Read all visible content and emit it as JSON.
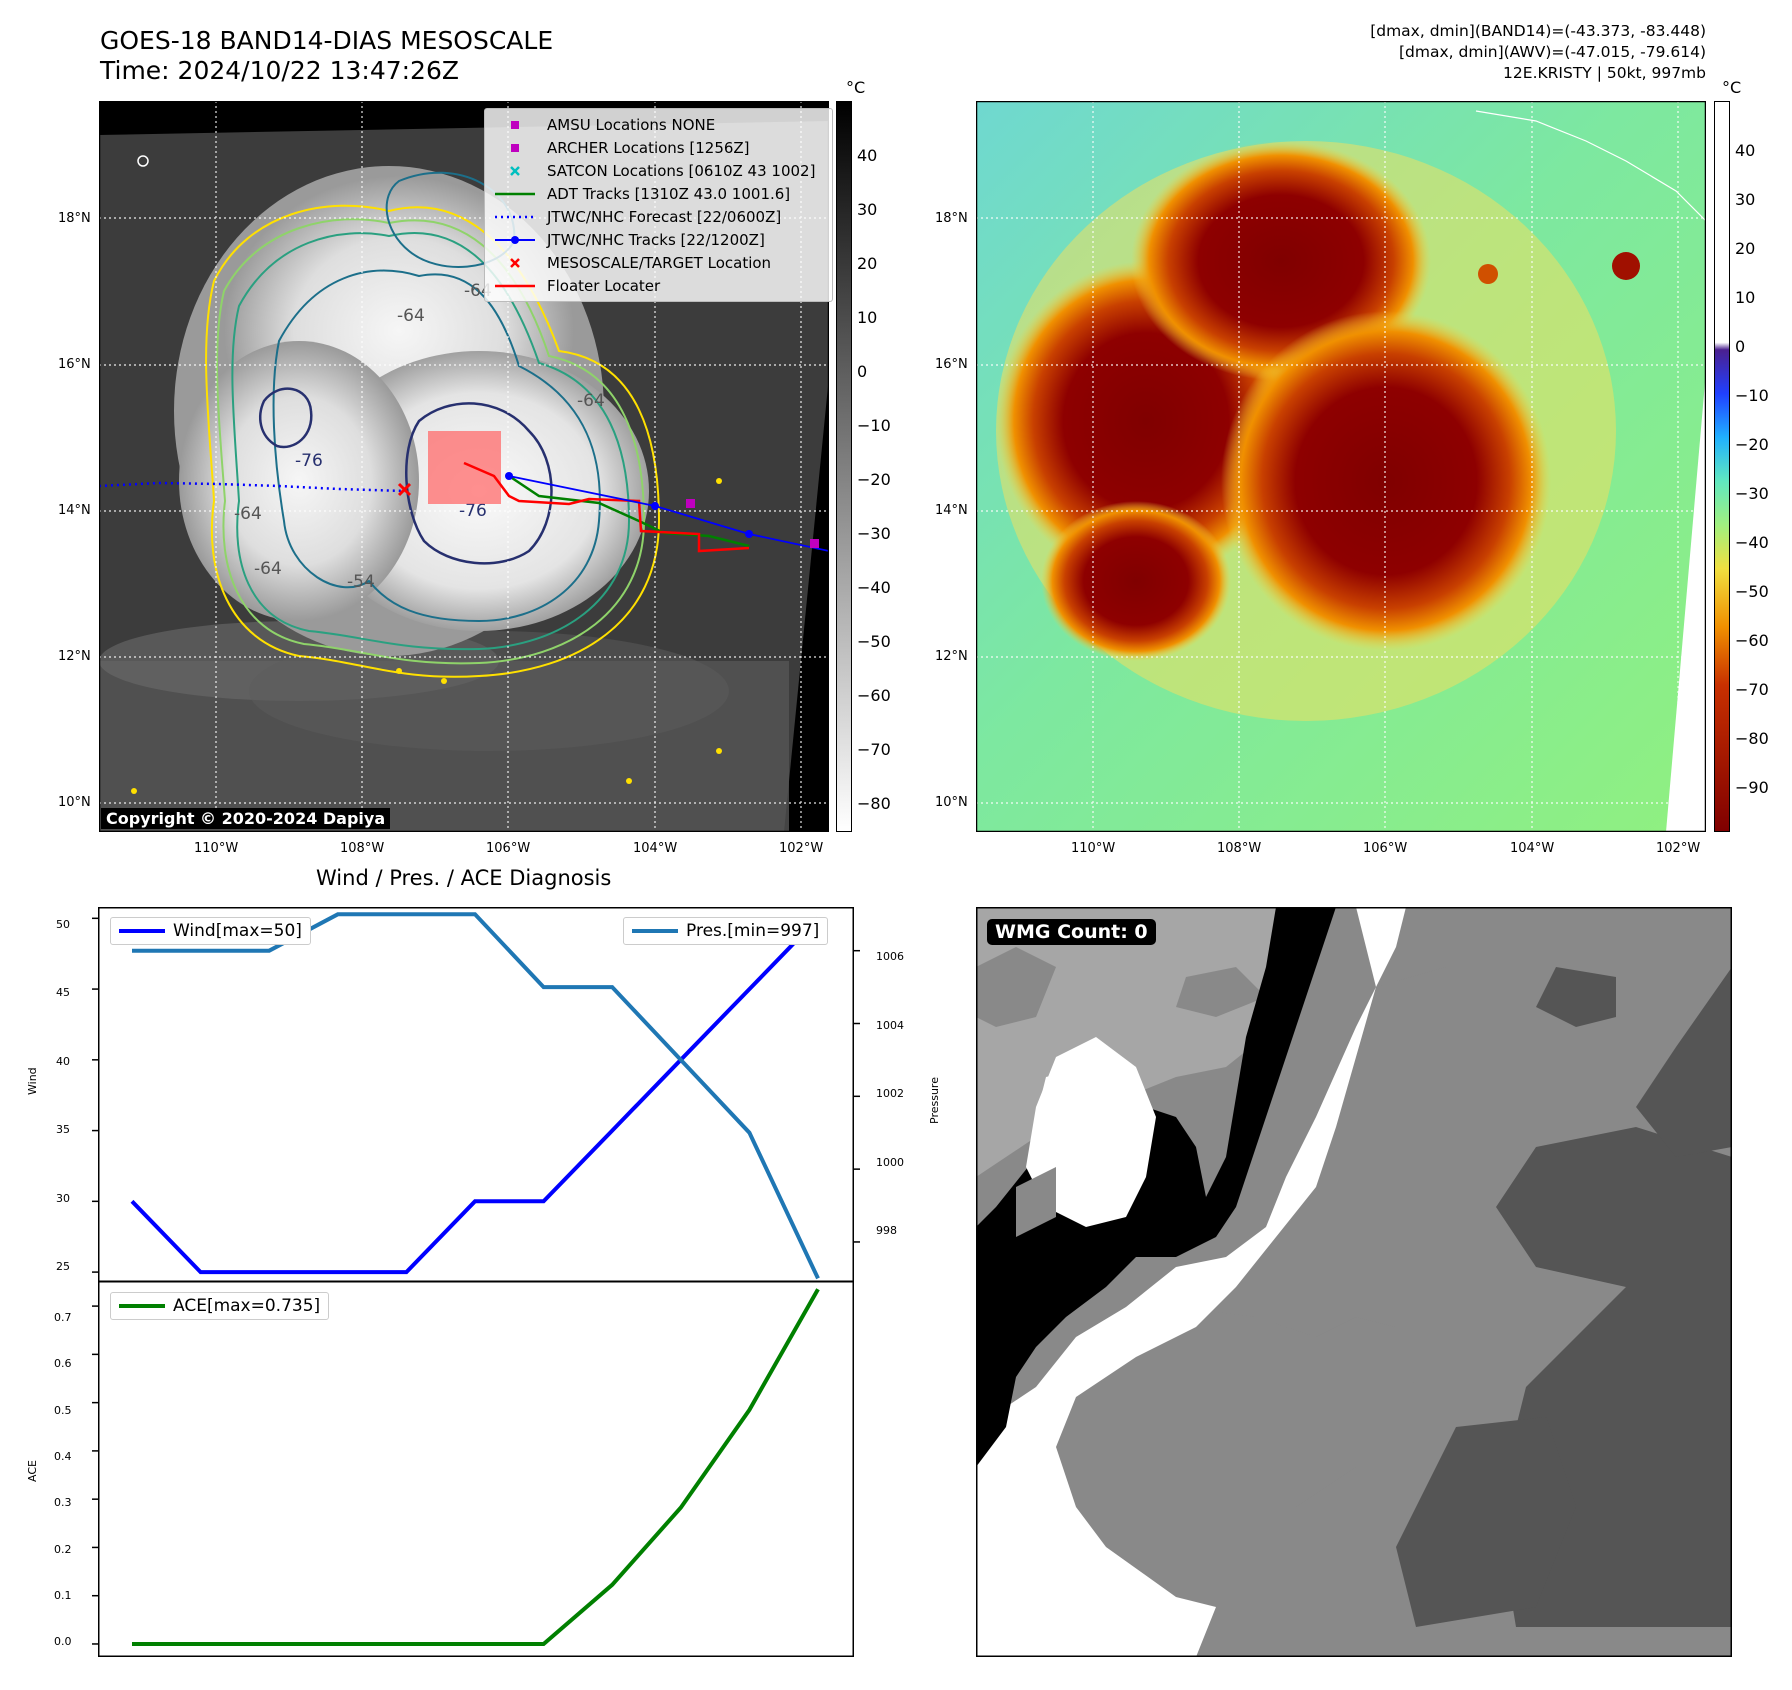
{
  "header": {
    "title_line1": "GOES-18 BAND14-DIAS MESOSCALE",
    "title_line2": "Time: 2024/10/22 13:47:26Z",
    "info_line1": "[dmax, dmin](BAND14)=(-43.373, -83.448)",
    "info_line2": "[dmax, dmin](AWV)=(-47.015, -79.614)",
    "info_line3": "12E.KRISTY | 50kt, 997mb"
  },
  "maps": {
    "lat_labels": [
      "18°N",
      "16°N",
      "14°N",
      "12°N",
      "10°N"
    ],
    "lon_labels": [
      "110°W",
      "108°W",
      "106°W",
      "104°W",
      "102°W"
    ],
    "copyright": "Copyright © 2020-2024 Dapiya",
    "contour_labels": [
      "-64",
      "-64",
      "-64",
      "-76",
      "-76",
      "-64",
      "-64",
      "-54"
    ],
    "legend": [
      {
        "label": "AMSU Locations NONE",
        "color": "#bf00bf",
        "symbol": "square"
      },
      {
        "label": "ARCHER Locations [1256Z]",
        "color": "#bf00bf",
        "symbol": "square"
      },
      {
        "label": "SATCON Locations [0610Z 43 1002]",
        "color": "#00bfbf",
        "symbol": "x"
      },
      {
        "label": "ADT Tracks [1310Z 43.0 1001.6]",
        "color": "#008000",
        "symbol": "line"
      },
      {
        "label": "JTWC/NHC Forecast [22/0600Z]",
        "color": "#0000ff",
        "symbol": "dotted"
      },
      {
        "label": "JTWC/NHC Tracks [22/1200Z]",
        "color": "#0000ff",
        "symbol": "line-dot"
      },
      {
        "label": "MESOSCALE/TARGET Location",
        "color": "#ff0000",
        "symbol": "x"
      },
      {
        "label": "Floater Locater",
        "color": "#ff0000",
        "symbol": "line"
      }
    ],
    "ir_colorbar": {
      "unit": "°C",
      "ticks": [
        "40",
        "30",
        "20",
        "10",
        "0",
        "−10",
        "−20",
        "−30",
        "−40",
        "−50",
        "−60",
        "−70",
        "−80"
      ]
    },
    "awv_colorbar": {
      "unit": "°C",
      "ticks": [
        "40",
        "30",
        "20",
        "10",
        "0",
        "−10",
        "−20",
        "−30",
        "−40",
        "−50",
        "−60",
        "−70",
        "−80",
        "−90"
      ]
    },
    "wmg_label": "WMG Count: 0"
  },
  "chart_data": [
    {
      "type": "line",
      "title": "Wind / Pres. / ACE Diagnosis",
      "ylabel": "Wind",
      "y2label": "Pressure",
      "ylim": [
        24.3,
        50.8
      ],
      "y2lim": [
        996.9,
        1007.2
      ],
      "yticks": [
        "50",
        "45",
        "40",
        "35",
        "30",
        "25"
      ],
      "y2ticks": [
        "1006",
        "1004",
        "1002",
        "1000",
        "998"
      ],
      "series": [
        {
          "name": "Wind[max=50]",
          "color": "#0000ff",
          "axis": "left",
          "values": [
            30,
            25,
            25,
            25,
            25,
            30,
            30,
            35,
            40,
            45,
            50
          ]
        },
        {
          "name": "Pres.[min=997]",
          "color": "#1f77b4",
          "axis": "right",
          "values": [
            1006,
            1006,
            1006,
            1007,
            1007,
            1007,
            1005,
            1005,
            1003,
            1001,
            997
          ]
        }
      ]
    },
    {
      "type": "line",
      "ylabel": "ACE",
      "ylim": [
        -0.027,
        0.752
      ],
      "yticks": [
        "0.7",
        "0.6",
        "0.5",
        "0.4",
        "0.3",
        "0.2",
        "0.1",
        "0.0"
      ],
      "series": [
        {
          "name": "ACE[max=0.735]",
          "color": "#008000",
          "axis": "left",
          "values": [
            0,
            0,
            0,
            0,
            0,
            0,
            0,
            0.1225,
            0.2825,
            0.485,
            0.735
          ]
        }
      ]
    }
  ]
}
